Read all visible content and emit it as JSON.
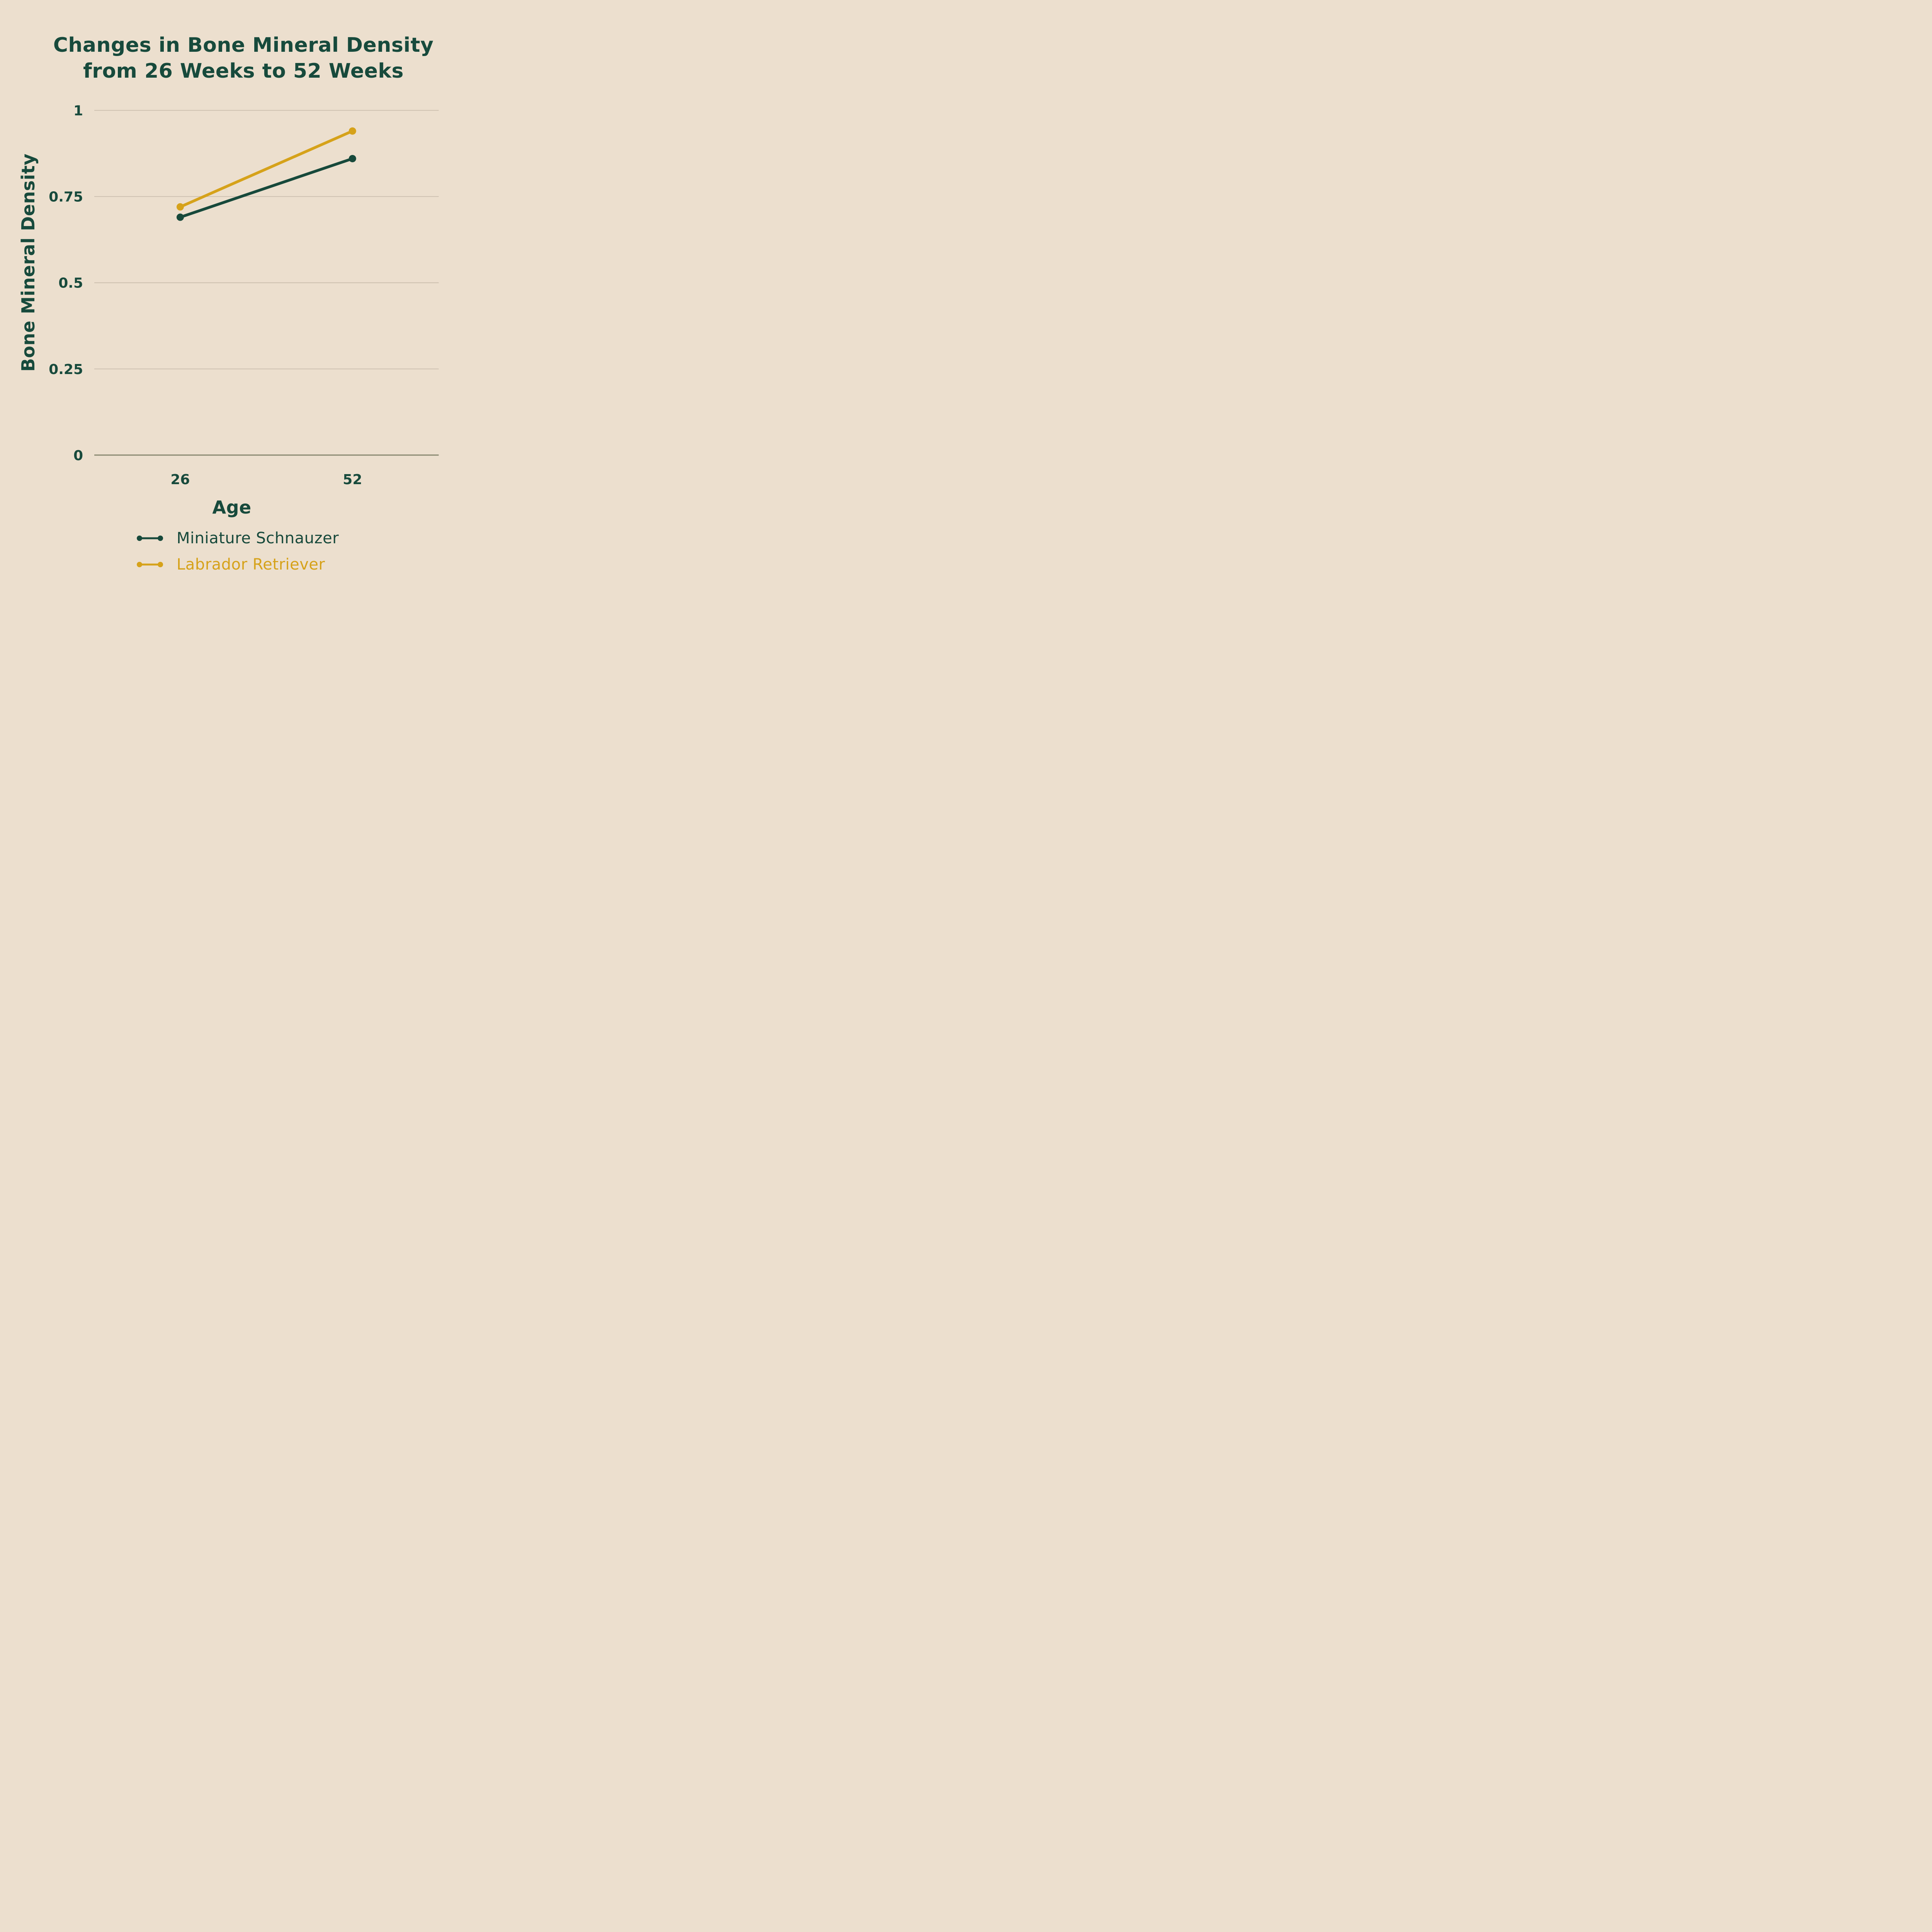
{
  "title": {
    "line1": "Changes in Bone Mineral Density",
    "line2": "from 26 Weeks to 52 Weeks"
  },
  "axes": {
    "x_label": "Age",
    "y_label": "Bone Mineral Density",
    "x_tick_labels": [
      "26",
      "52"
    ],
    "y_ticks": [
      {
        "value": 1,
        "label": "1"
      },
      {
        "value": 0.75,
        "label": "0.75"
      },
      {
        "value": 0.5,
        "label": "0.5"
      },
      {
        "value": 0.25,
        "label": "0.25"
      },
      {
        "value": 0,
        "label": "0"
      }
    ]
  },
  "colors": {
    "background": "#ECDFCE",
    "text_green": "#174A3C",
    "schnauzer_green": "#17493B",
    "labrador_gold": "#D6A21A",
    "gridline": "#C9BCAC",
    "baseline": "#87886F"
  },
  "chart_data": {
    "type": "line",
    "title": "Changes in Bone Mineral Density from 26 Weeks to 52 Weeks",
    "xlabel": "Age",
    "ylabel": "Bone Mineral Density",
    "categories": [
      26,
      52
    ],
    "ylim": [
      0,
      1
    ],
    "grid": "horizontal",
    "legend_position": "bottom-left",
    "series": [
      {
        "name": "Miniature Schnauzer",
        "values": [
          0.69,
          0.86
        ],
        "color": "#17493B"
      },
      {
        "name": "Labrador Retriever",
        "values": [
          0.72,
          0.94
        ],
        "color": "#D6A21A"
      }
    ]
  }
}
